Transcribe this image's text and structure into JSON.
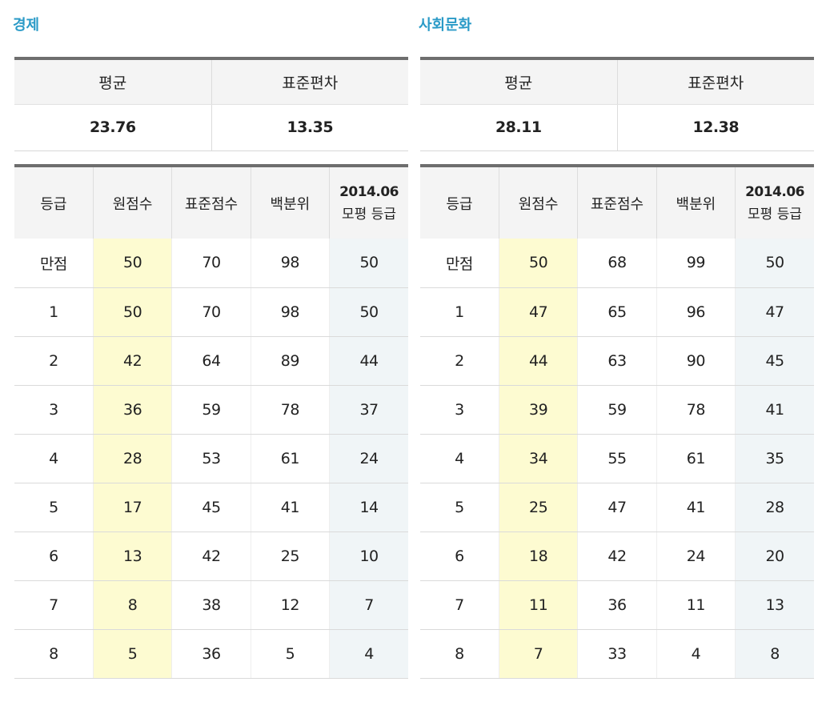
{
  "sections": [
    {
      "title": "경제",
      "stats_headers": [
        "평균",
        "표준편차"
      ],
      "stats_values": [
        "23.76",
        "13.35"
      ],
      "grade_headers": [
        "등급",
        "원점수",
        "표준점수",
        "백분위"
      ],
      "mock_header": [
        "2014.06",
        "모평 등급"
      ],
      "rows": [
        [
          "만점",
          "50",
          "70",
          "98",
          "50"
        ],
        [
          "1",
          "50",
          "70",
          "98",
          "50"
        ],
        [
          "2",
          "42",
          "64",
          "89",
          "44"
        ],
        [
          "3",
          "36",
          "59",
          "78",
          "37"
        ],
        [
          "4",
          "28",
          "53",
          "61",
          "24"
        ],
        [
          "5",
          "17",
          "45",
          "41",
          "14"
        ],
        [
          "6",
          "13",
          "42",
          "25",
          "10"
        ],
        [
          "7",
          "8",
          "38",
          "12",
          "7"
        ],
        [
          "8",
          "5",
          "36",
          "5",
          "4"
        ]
      ]
    },
    {
      "title": "사회문화",
      "stats_headers": [
        "평균",
        "표준편차"
      ],
      "stats_values": [
        "28.11",
        "12.38"
      ],
      "grade_headers": [
        "등급",
        "원점수",
        "표준점수",
        "백분위"
      ],
      "mock_header": [
        "2014.06",
        "모평 등급"
      ],
      "rows": [
        [
          "만점",
          "50",
          "68",
          "99",
          "50"
        ],
        [
          "1",
          "47",
          "65",
          "96",
          "47"
        ],
        [
          "2",
          "44",
          "63",
          "90",
          "45"
        ],
        [
          "3",
          "39",
          "59",
          "78",
          "41"
        ],
        [
          "4",
          "34",
          "55",
          "61",
          "35"
        ],
        [
          "5",
          "25",
          "47",
          "41",
          "28"
        ],
        [
          "6",
          "18",
          "42",
          "24",
          "20"
        ],
        [
          "7",
          "11",
          "36",
          "11",
          "13"
        ],
        [
          "8",
          "7",
          "33",
          "4",
          "8"
        ]
      ]
    }
  ]
}
